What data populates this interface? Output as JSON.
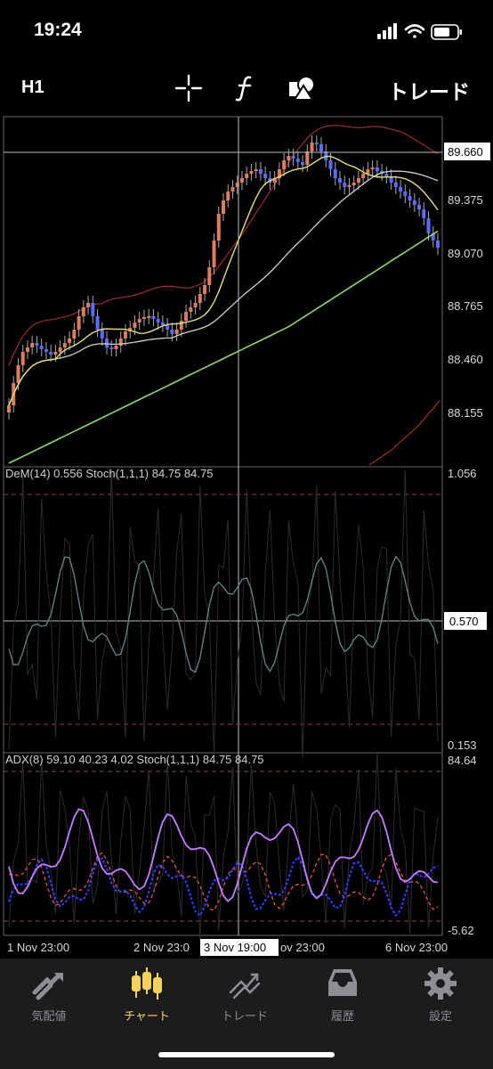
{
  "status_bar": {
    "time": "19:24"
  },
  "toolbar": {
    "timeframe": "H1",
    "crosshair_icon": "crosshair-icon",
    "indicator_icon": "function-icon",
    "objects_icon": "shapes-icon",
    "trade_label": "トレード"
  },
  "main_chart": {
    "price_axis": [
      "89.660",
      "89.375",
      "89.070",
      "88.765",
      "88.460",
      "88.155"
    ],
    "crosshair_price": "89.660"
  },
  "dem_panel": {
    "label": "DeM(14) 0.556 Stoch(1,1,1) 84.75 84.75",
    "axis_top": "1.056",
    "axis_mid": "0.570",
    "axis_bottom": "0.153"
  },
  "adx_panel": {
    "label": "ADX(8) 59.10 40.23 4.02 Stoch(1,1,1) 84.75 84.75",
    "axis_top": "84.64",
    "axis_bottom": "-5.62"
  },
  "time_axis": {
    "labels": [
      "1 Nov 23:00",
      "2 Nov 23:0",
      "ov 23:00",
      "6 Nov 23:00"
    ],
    "crosshair_time": "3 Nov 19:00"
  },
  "tab_bar": {
    "items": [
      {
        "label": "気配値",
        "icon": "quotes-icon"
      },
      {
        "label": "チャート",
        "icon": "chart-candles-icon"
      },
      {
        "label": "トレード",
        "icon": "trade-icon"
      },
      {
        "label": "履歴",
        "icon": "history-inbox-icon"
      },
      {
        "label": "設定",
        "icon": "gear-icon"
      }
    ],
    "active_index": 1
  },
  "colors": {
    "bull_candle": "#e07c5e",
    "bear_candle": "#5a6cff",
    "ma_fast": "#e8e07a",
    "ma_mid": "#d0d0d0",
    "ma_slow": "#8fd86a",
    "envelope": "#a8302a",
    "dem_line": "#5f8a8a",
    "adx_main": "#c77dff",
    "adx_plus": "#3040ff",
    "adx_minus": "#e0583a",
    "active_tab": "#f5d25b"
  }
}
